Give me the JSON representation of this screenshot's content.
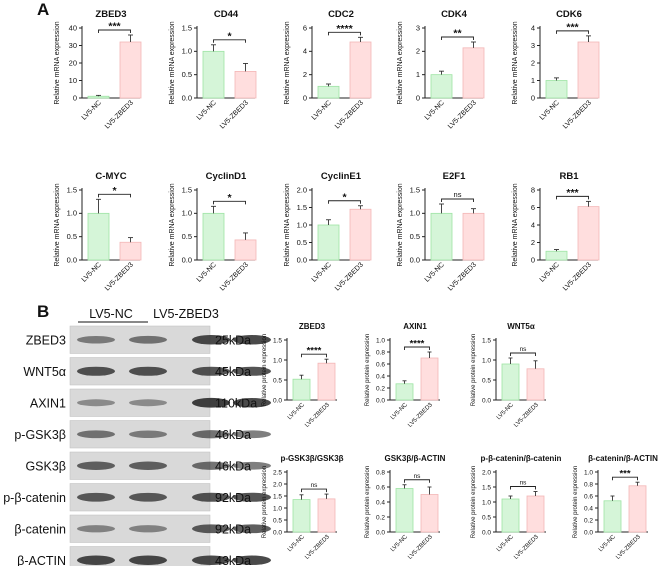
{
  "panels": {
    "a": "A",
    "b": "B"
  },
  "colors": {
    "nc_fill": "#d5f5d8",
    "nc_edge": "#9ee4a4",
    "zb_fill": "#ffdede",
    "zb_edge": "#f3b6b6",
    "axis": "#222222",
    "band": "#2a2a2a",
    "blot_bg": "#d9d9d9"
  },
  "chart_data": [
    {
      "type": "bar",
      "title": "ZBED3",
      "ylabel": "Relative mRNA expression",
      "categories": [
        "LV5-NC",
        "LV5-ZBED3"
      ],
      "values": [
        1,
        32
      ],
      "errors": [
        0.5,
        4
      ],
      "ylim": [
        0,
        40
      ],
      "yticks": [
        "0",
        "10",
        "20",
        "30",
        "40"
      ],
      "significance": "***"
    },
    {
      "type": "bar",
      "title": "CD44",
      "ylabel": "Relative mRNA expression",
      "categories": [
        "LV5-NC",
        "LV5-ZBED3"
      ],
      "values": [
        1.0,
        0.57
      ],
      "errors": [
        0.14,
        0.17
      ],
      "ylim": [
        0,
        1.5
      ],
      "yticks": [
        "0.0",
        "0.5",
        "1.0",
        "1.5"
      ],
      "significance": "*"
    },
    {
      "type": "bar",
      "title": "CDC2",
      "ylabel": "Relative mRNA expression",
      "categories": [
        "LV5-NC",
        "LV5-ZBED3"
      ],
      "values": [
        1,
        4.8
      ],
      "errors": [
        0.2,
        0.4
      ],
      "ylim": [
        0,
        6
      ],
      "yticks": [
        "0",
        "2",
        "4",
        "6"
      ],
      "significance": "****"
    },
    {
      "type": "bar",
      "title": "CDK4",
      "ylabel": "Relative mRNA expression",
      "categories": [
        "LV5-NC",
        "LV5-ZBED3"
      ],
      "values": [
        1,
        2.15
      ],
      "errors": [
        0.15,
        0.25
      ],
      "ylim": [
        0,
        3
      ],
      "yticks": [
        "0",
        "1",
        "2",
        "3"
      ],
      "significance": "**"
    },
    {
      "type": "bar",
      "title": "CDK6",
      "ylabel": "Relative mRNA expression",
      "categories": [
        "LV5-NC",
        "LV5-ZBED3"
      ],
      "values": [
        1,
        3.2
      ],
      "errors": [
        0.15,
        0.35
      ],
      "ylim": [
        0,
        4
      ],
      "yticks": [
        "0",
        "1",
        "2",
        "3",
        "4"
      ],
      "significance": "***"
    },
    {
      "type": "bar",
      "title": "C-MYC",
      "ylabel": "Relative mRNA expression",
      "categories": [
        "LV5-NC",
        "LV5-ZBED3"
      ],
      "values": [
        1.0,
        0.38
      ],
      "errors": [
        0.3,
        0.1
      ],
      "ylim": [
        0,
        1.5
      ],
      "yticks": [
        "0.0",
        "0.5",
        "1.0",
        "1.5"
      ],
      "significance": "*"
    },
    {
      "type": "bar",
      "title": "CyclinD1",
      "ylabel": "Relative mRNA expression",
      "categories": [
        "LV5-NC",
        "LV5-ZBED3"
      ],
      "values": [
        1.0,
        0.43
      ],
      "errors": [
        0.15,
        0.15
      ],
      "ylim": [
        0,
        1.5
      ],
      "yticks": [
        "0.0",
        "0.5",
        "1.0",
        "1.5"
      ],
      "significance": "*"
    },
    {
      "type": "bar",
      "title": "CyclinE1",
      "ylabel": "Relative mRNA expression",
      "categories": [
        "LV5-NC",
        "LV5-ZBED3"
      ],
      "values": [
        1.0,
        1.45
      ],
      "errors": [
        0.15,
        0.1
      ],
      "ylim": [
        0,
        2.0
      ],
      "yticks": [
        "0.0",
        "0.5",
        "1.0",
        "1.5",
        "2.0"
      ],
      "significance": "*"
    },
    {
      "type": "bar",
      "title": "E2F1",
      "ylabel": "Relative mRNA expression",
      "categories": [
        "LV5-NC",
        "LV5-ZBED3"
      ],
      "values": [
        1.0,
        1.0
      ],
      "errors": [
        0.2,
        0.1
      ],
      "ylim": [
        0,
        1.5
      ],
      "yticks": [
        "0.0",
        "0.5",
        "1.0",
        "1.5"
      ],
      "significance": "ns"
    },
    {
      "type": "bar",
      "title": "RB1",
      "ylabel": "Relative mRNA expression",
      "categories": [
        "LV5-NC",
        "LV5-ZBED3"
      ],
      "values": [
        1,
        6.1
      ],
      "errors": [
        0.2,
        0.6
      ],
      "ylim": [
        0,
        8
      ],
      "yticks": [
        "0",
        "2",
        "4",
        "6",
        "8"
      ],
      "significance": "***"
    },
    {
      "type": "bar",
      "title": "ZBED3",
      "ylabel": "Relative protein expression",
      "categories": [
        "LV5-NC",
        "LV5-ZBED3"
      ],
      "values": [
        0.52,
        0.92
      ],
      "errors": [
        0.1,
        0.1
      ],
      "ylim": [
        0,
        1.5
      ],
      "yticks": [
        "0.0",
        "0.5",
        "1.0",
        "1.5"
      ],
      "significance": "****"
    },
    {
      "type": "bar",
      "title": "AXIN1",
      "ylabel": "Relative protein expression",
      "categories": [
        "LV5-NC",
        "LV5-ZBED3"
      ],
      "values": [
        0.27,
        0.7
      ],
      "errors": [
        0.05,
        0.1
      ],
      "ylim": [
        0,
        1.0
      ],
      "yticks": [
        "0.0",
        "0.2",
        "0.4",
        "0.6",
        "0.8",
        "1.0"
      ],
      "significance": "****"
    },
    {
      "type": "bar",
      "title": "WNT5α",
      "ylabel": "Relative protein expression",
      "categories": [
        "LV5-NC",
        "LV5-ZBED3"
      ],
      "values": [
        0.9,
        0.78
      ],
      "errors": [
        0.15,
        0.2
      ],
      "ylim": [
        0,
        1.5
      ],
      "yticks": [
        "0.0",
        "0.5",
        "1.0",
        "1.5"
      ],
      "significance": "ns"
    },
    {
      "type": "bar",
      "title": "p-GSK3β/GSK3β",
      "ylabel": "Relative protein expression",
      "categories": [
        "LV5-NC",
        "LV5-ZBED3"
      ],
      "values": [
        1.35,
        1.38
      ],
      "errors": [
        0.2,
        0.2
      ],
      "ylim": [
        0,
        2.5
      ],
      "yticks": [
        "0.0",
        "0.5",
        "1.0",
        "1.5",
        "2.0",
        "2.5"
      ],
      "significance": "ns"
    },
    {
      "type": "bar",
      "title": "GSK3β/β-ACTIN",
      "ylabel": "Relative protein expression",
      "categories": [
        "LV5-NC",
        "LV5-ZBED3"
      ],
      "values": [
        0.58,
        0.5
      ],
      "errors": [
        0.05,
        0.1
      ],
      "ylim": [
        0,
        0.8
      ],
      "yticks": [
        "0.0",
        "0.2",
        "0.4",
        "0.6",
        "0.8"
      ],
      "significance": "ns"
    },
    {
      "type": "bar",
      "title": "p-β-catenin/β-catenin",
      "ylabel": "Relative protein expression",
      "categories": [
        "LV5-NC",
        "LV5-ZBED3"
      ],
      "values": [
        1.1,
        1.2
      ],
      "errors": [
        0.1,
        0.15
      ],
      "ylim": [
        0,
        2.0
      ],
      "yticks": [
        "0.0",
        "0.5",
        "1.0",
        "1.5",
        "2.0"
      ],
      "significance": "ns"
    },
    {
      "type": "bar",
      "title": "β-catenin/β-ACTIN",
      "ylabel": "Relative protein expression",
      "categories": [
        "LV5-NC",
        "LV5-ZBED3"
      ],
      "values": [
        0.52,
        0.77
      ],
      "errors": [
        0.08,
        0.06
      ],
      "ylim": [
        0,
        1.0
      ],
      "yticks": [
        "0.0",
        "0.2",
        "0.4",
        "0.6",
        "0.8",
        "1.0"
      ],
      "significance": "***"
    }
  ],
  "western_blot": {
    "groups": [
      "LV5-NC",
      "LV5-ZBED3"
    ],
    "rows": [
      {
        "protein": "ZBED3",
        "size": "25kDa",
        "intensity": [
          0.55,
          0.6,
          0.85,
          0.85
        ]
      },
      {
        "protein": "WNT5α",
        "size": "45kDa",
        "intensity": [
          0.8,
          0.8,
          0.8,
          0.8
        ]
      },
      {
        "protein": "AXIN1",
        "size": "110kDa",
        "intensity": [
          0.45,
          0.45,
          0.9,
          0.85
        ]
      },
      {
        "protein": "p-GSK3β",
        "size": "46kDa",
        "intensity": [
          0.6,
          0.55,
          0.65,
          0.6
        ]
      },
      {
        "protein": "GSK3β",
        "size": "46kDa",
        "intensity": [
          0.7,
          0.7,
          0.65,
          0.6
        ]
      },
      {
        "protein": "p-β-catenin",
        "size": "92kDa",
        "intensity": [
          0.75,
          0.75,
          0.8,
          0.8
        ]
      },
      {
        "protein": "β-catenin",
        "size": "92kDa",
        "intensity": [
          0.5,
          0.5,
          0.75,
          0.75
        ]
      },
      {
        "protein": "β-ACTIN",
        "size": "43kDa",
        "intensity": [
          0.85,
          0.85,
          0.85,
          0.85
        ]
      }
    ]
  }
}
